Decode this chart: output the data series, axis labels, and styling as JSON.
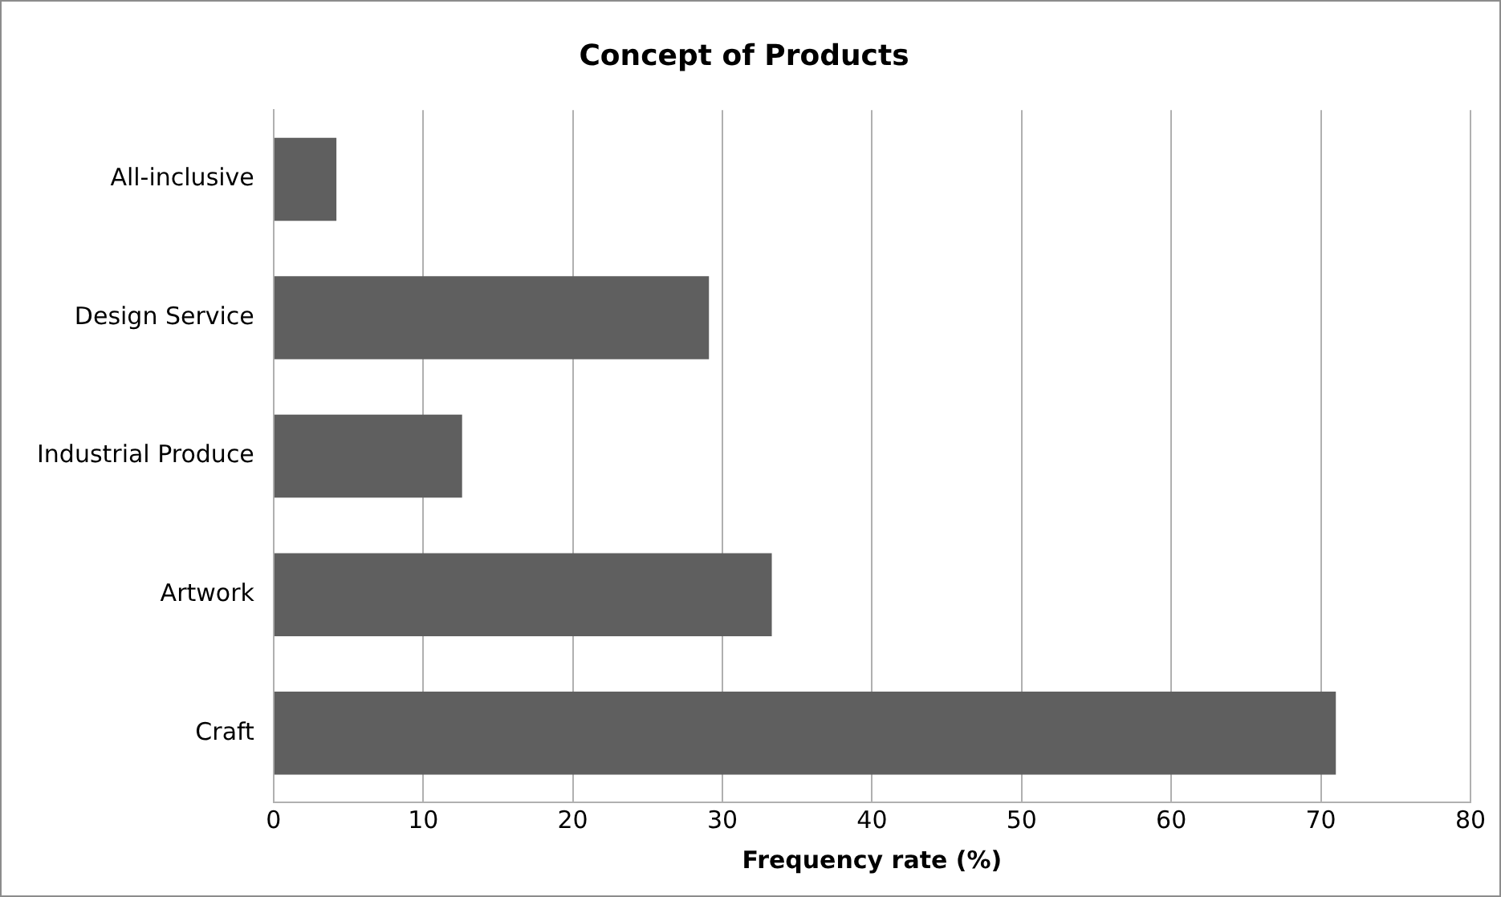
{
  "chart_data": {
    "type": "bar",
    "orientation": "horizontal",
    "title": "Concept of Products",
    "xlabel": "Frequency rate (%)",
    "categories": [
      "All-inclusive",
      "Design Service",
      "Industrial Produce",
      "Artwork",
      "Craft"
    ],
    "values": [
      4.2,
      29.1,
      12.6,
      33.3,
      71.0
    ],
    "color": "#5f5f5f",
    "xlim": [
      0,
      80
    ],
    "xticks": [
      0,
      10,
      20,
      30,
      40,
      50,
      60,
      70,
      80
    ],
    "grid": "x"
  }
}
